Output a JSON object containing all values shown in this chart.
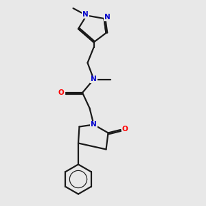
{
  "bg_color": "#e8e8e8",
  "bond_color": "#1a1a1a",
  "nitrogen_color": "#0000cc",
  "oxygen_color": "#ff0000",
  "line_width": 1.6,
  "figsize": [
    3.0,
    3.0
  ],
  "dpi": 100,
  "xlim": [
    0,
    10
  ],
  "ylim": [
    0,
    10
  ]
}
